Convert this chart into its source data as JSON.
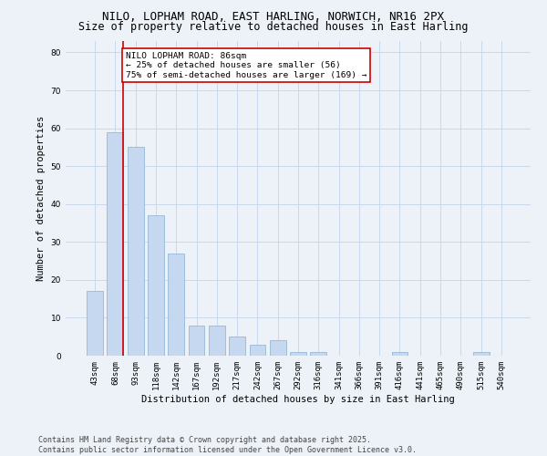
{
  "title_line1": "NILO, LOPHAM ROAD, EAST HARLING, NORWICH, NR16 2PX",
  "title_line2": "Size of property relative to detached houses in East Harling",
  "xlabel": "Distribution of detached houses by size in East Harling",
  "ylabel": "Number of detached properties",
  "categories": [
    "43sqm",
    "68sqm",
    "93sqm",
    "118sqm",
    "142sqm",
    "167sqm",
    "192sqm",
    "217sqm",
    "242sqm",
    "267sqm",
    "292sqm",
    "316sqm",
    "341sqm",
    "366sqm",
    "391sqm",
    "416sqm",
    "441sqm",
    "465sqm",
    "490sqm",
    "515sqm",
    "540sqm"
  ],
  "values": [
    17,
    59,
    55,
    37,
    27,
    8,
    8,
    5,
    3,
    4,
    1,
    1,
    0,
    0,
    0,
    1,
    0,
    0,
    0,
    1,
    0
  ],
  "bar_color": "#c5d8f0",
  "bar_edge_color": "#8ab0d0",
  "grid_color": "#c8d8ec",
  "background_color": "#edf2f8",
  "vline_color": "#cc0000",
  "annotation_text": "NILO LOPHAM ROAD: 86sqm\n← 25% of detached houses are smaller (56)\n75% of semi-detached houses are larger (169) →",
  "annotation_box_color": "#ffffff",
  "annotation_box_edge": "#cc0000",
  "ylim": [
    0,
    83
  ],
  "yticks": [
    0,
    10,
    20,
    30,
    40,
    50,
    60,
    70,
    80
  ],
  "footer_line1": "Contains HM Land Registry data © Crown copyright and database right 2025.",
  "footer_line2": "Contains public sector information licensed under the Open Government Licence v3.0.",
  "title_fontsize": 9,
  "subtitle_fontsize": 8.5,
  "axis_label_fontsize": 7.5,
  "tick_fontsize": 6.5,
  "annotation_fontsize": 6.8,
  "footer_fontsize": 6
}
